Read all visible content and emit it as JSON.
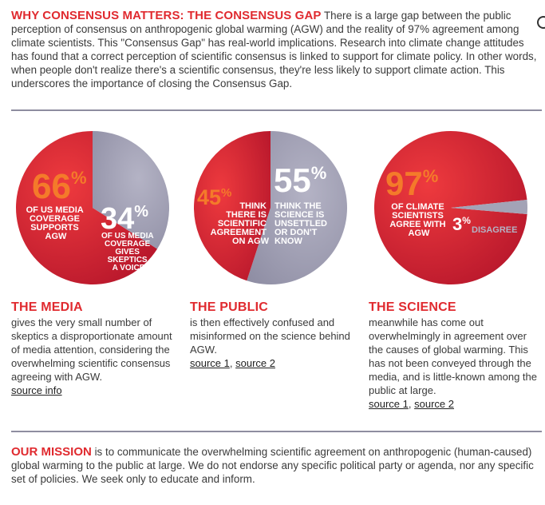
{
  "intro": {
    "headline": "WHY CONSENSUS MATTERS: THE CONSENSUS GAP",
    "body": "There is a large gap between the public perception of consensus on anthropogenic global warming (AGW) and the reality of 97% agreement among climate scientists. This \"Consensus Gap\" has real-world implications. Research into climate change attitudes has found that a correct perception of scientific consensus is linked to support for climate policy. In other words, when people don't realize there's a scientific consensus, they're less likely to support climate action. This underscores the importance of closing the Consensus Gap."
  },
  "colors": {
    "red": "#e02a2f",
    "dark_red": "#b9182c",
    "gray": "#a3a3b6",
    "orange": "#f47a2a",
    "rule": "#8e8da0"
  },
  "pies": [
    {
      "id": "media",
      "major": {
        "value": 66,
        "num": "66",
        "pct": "%",
        "lines": [
          "OF US MEDIA",
          "COVERAGE",
          "SUPPORTS",
          "AGW"
        ]
      },
      "minor": {
        "value": 34,
        "num": "34",
        "pct": "%",
        "lines": [
          "OF US MEDIA",
          "COVERAGE",
          "GIVES",
          "SKEPTICS",
          "A VOICE"
        ]
      }
    },
    {
      "id": "public",
      "major": {
        "value": 55,
        "num": "55",
        "pct": "%",
        "lines": [
          "THINK THE",
          "SCIENCE IS",
          "UNSETTLED",
          "OR DON'T",
          "KNOW"
        ]
      },
      "minor": {
        "value": 45,
        "num": "45",
        "pct": "%",
        "lines": [
          "THINK",
          "THERE IS",
          "SCIENTIFIC",
          "AGREEMENT",
          "ON AGW"
        ]
      }
    },
    {
      "id": "science",
      "major": {
        "value": 97,
        "num": "97",
        "pct": "%",
        "lines": [
          "OF CLIMATE",
          "SCIENTISTS",
          "AGREE WITH",
          "AGW"
        ]
      },
      "minor": {
        "value": 3,
        "num": "3",
        "pct": "%",
        "label": "DISAGREE"
      }
    }
  ],
  "columns": [
    {
      "title": "THE MEDIA",
      "body": "gives the very small number of skeptics a disproportionate amount of media attention, considering the overwhelming scientific consensus agreeing with AGW.",
      "links": [
        "source info"
      ]
    },
    {
      "title": "THE PUBLIC",
      "body": "is then effectively confused and misinformed on the science behind AGW.",
      "links": [
        "source 1",
        "source 2"
      ],
      "sep": ", "
    },
    {
      "title": "THE SCIENCE",
      "body": "meanwhile has come out overwhelmingly in agreement over the causes of global warming. This has not been conveyed through the media, and is little-known among the public at large.",
      "links": [
        "source 1",
        "source 2"
      ],
      "sep": ", "
    }
  ],
  "mission": {
    "lead": "OUR MISSION",
    "body": "is to communicate the overwhelming scientific agreement on anthropogenic (human-caused) global warming to the public at large. We do not endorse any specific political party or agenda, nor any specific set of policies. We seek only to educate and inform."
  }
}
